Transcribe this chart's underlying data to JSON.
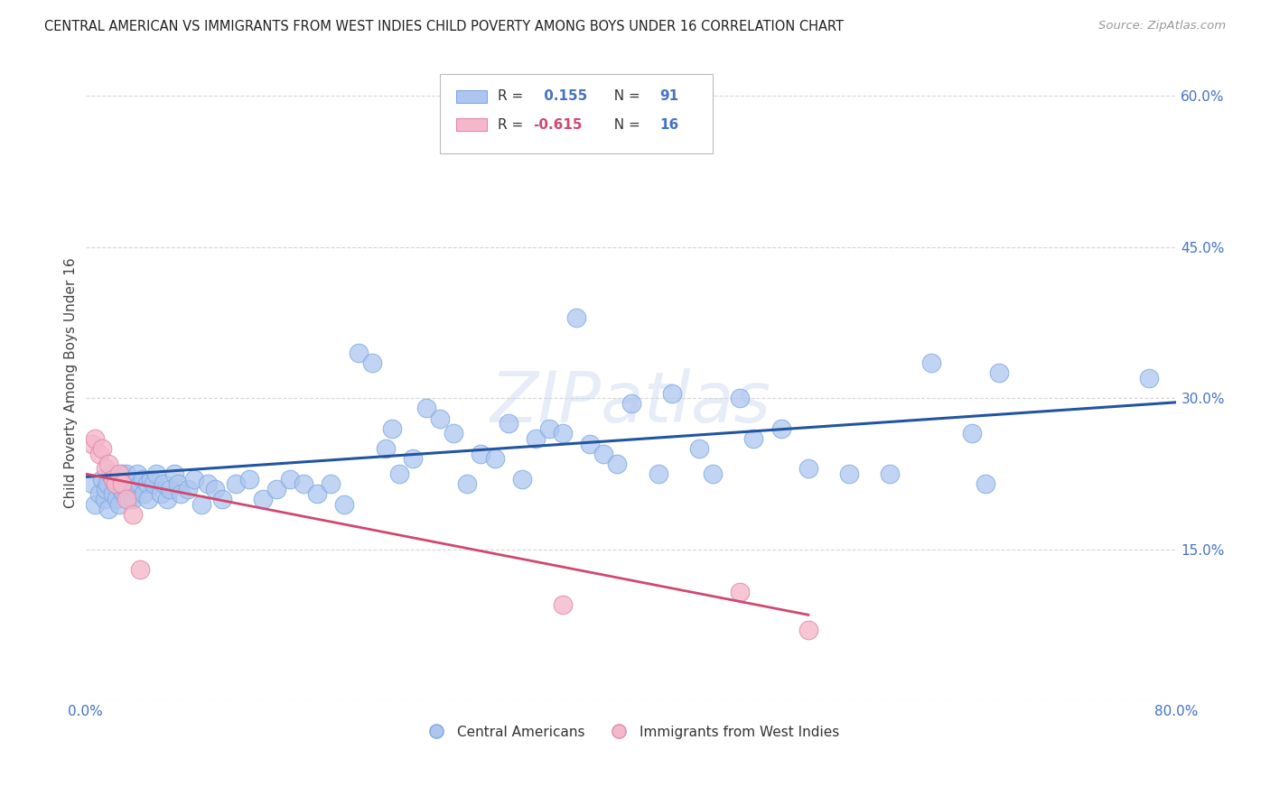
{
  "title": "CENTRAL AMERICAN VS IMMIGRANTS FROM WEST INDIES CHILD POVERTY AMONG BOYS UNDER 16 CORRELATION CHART",
  "source": "Source: ZipAtlas.com",
  "ylabel": "Child Poverty Among Boys Under 16",
  "xlim": [
    0.0,
    0.8
  ],
  "ylim": [
    0.0,
    0.63
  ],
  "xticks": [
    0.0,
    0.1,
    0.2,
    0.3,
    0.4,
    0.5,
    0.6,
    0.7,
    0.8
  ],
  "xticklabels": [
    "0.0%",
    "",
    "",
    "",
    "",
    "",
    "",
    "",
    "80.0%"
  ],
  "ytick_positions": [
    0.0,
    0.15,
    0.3,
    0.45,
    0.6
  ],
  "ytick_labels": [
    "",
    "15.0%",
    "30.0%",
    "45.0%",
    "60.0%"
  ],
  "blue_R": 0.155,
  "blue_N": 91,
  "pink_R": -0.615,
  "pink_N": 16,
  "blue_color": "#aec6ef",
  "blue_edge_color": "#7aa8df",
  "blue_line_color": "#2255a0",
  "pink_color": "#f5b8cb",
  "pink_edge_color": "#e088a8",
  "pink_line_color": "#d04870",
  "watermark": "ZIPatlas",
  "blue_line_x0": 0.0,
  "blue_line_y0": 0.222,
  "blue_line_x1": 0.8,
  "blue_line_y1": 0.296,
  "pink_line_x0": 0.0,
  "pink_line_y0": 0.225,
  "pink_line_x1": 0.53,
  "pink_line_y1": 0.085,
  "blue_x": [
    0.005,
    0.007,
    0.01,
    0.012,
    0.014,
    0.015,
    0.016,
    0.017,
    0.018,
    0.02,
    0.02,
    0.022,
    0.023,
    0.025,
    0.026,
    0.027,
    0.028,
    0.03,
    0.03,
    0.032,
    0.033,
    0.035,
    0.036,
    0.038,
    0.04,
    0.042,
    0.043,
    0.045,
    0.046,
    0.048,
    0.05,
    0.052,
    0.055,
    0.057,
    0.06,
    0.062,
    0.065,
    0.068,
    0.07,
    0.075,
    0.08,
    0.085,
    0.09,
    0.095,
    0.1,
    0.11,
    0.12,
    0.13,
    0.14,
    0.15,
    0.16,
    0.17,
    0.18,
    0.19,
    0.2,
    0.21,
    0.22,
    0.225,
    0.23,
    0.24,
    0.25,
    0.26,
    0.27,
    0.28,
    0.29,
    0.3,
    0.31,
    0.32,
    0.33,
    0.34,
    0.35,
    0.36,
    0.37,
    0.38,
    0.39,
    0.4,
    0.42,
    0.43,
    0.45,
    0.46,
    0.48,
    0.49,
    0.51,
    0.53,
    0.56,
    0.59,
    0.62,
    0.65,
    0.66,
    0.67,
    0.78
  ],
  "blue_y": [
    0.215,
    0.195,
    0.205,
    0.22,
    0.2,
    0.21,
    0.215,
    0.19,
    0.225,
    0.205,
    0.22,
    0.215,
    0.2,
    0.195,
    0.21,
    0.225,
    0.205,
    0.215,
    0.225,
    0.2,
    0.215,
    0.2,
    0.21,
    0.225,
    0.215,
    0.22,
    0.205,
    0.215,
    0.2,
    0.22,
    0.215,
    0.225,
    0.205,
    0.215,
    0.2,
    0.21,
    0.225,
    0.215,
    0.205,
    0.21,
    0.22,
    0.195,
    0.215,
    0.21,
    0.2,
    0.215,
    0.22,
    0.2,
    0.21,
    0.22,
    0.215,
    0.205,
    0.215,
    0.195,
    0.345,
    0.335,
    0.25,
    0.27,
    0.225,
    0.24,
    0.29,
    0.28,
    0.265,
    0.215,
    0.245,
    0.24,
    0.275,
    0.22,
    0.26,
    0.27,
    0.265,
    0.38,
    0.255,
    0.245,
    0.235,
    0.295,
    0.225,
    0.305,
    0.25,
    0.225,
    0.3,
    0.26,
    0.27,
    0.23,
    0.225,
    0.225,
    0.335,
    0.265,
    0.215,
    0.325,
    0.32
  ],
  "pink_x": [
    0.005,
    0.007,
    0.01,
    0.012,
    0.015,
    0.017,
    0.02,
    0.022,
    0.025,
    0.027,
    0.03,
    0.035,
    0.04,
    0.35,
    0.48,
    0.53
  ],
  "pink_y": [
    0.255,
    0.26,
    0.245,
    0.25,
    0.23,
    0.235,
    0.22,
    0.215,
    0.225,
    0.215,
    0.2,
    0.185,
    0.13,
    0.095,
    0.108,
    0.07
  ]
}
